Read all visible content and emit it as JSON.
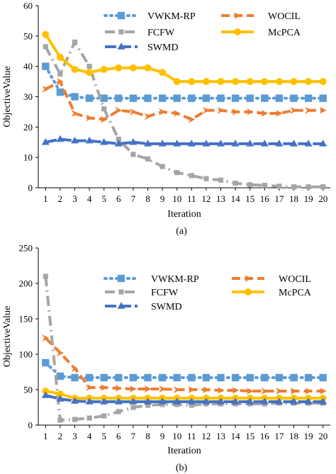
{
  "chart_data": [
    {
      "type": "line",
      "caption": "(a)",
      "xlabel": "Iteration",
      "ylabel": "ObjectiveValue",
      "ylim": [
        0,
        60
      ],
      "yticks": [
        0,
        10,
        20,
        30,
        40,
        50,
        60
      ],
      "x": [
        1,
        2,
        3,
        4,
        5,
        6,
        7,
        8,
        9,
        10,
        11,
        12,
        13,
        14,
        15,
        16,
        17,
        18,
        19,
        20
      ],
      "series": [
        {
          "name": "VWKM-RP",
          "color": "#5b9bd5",
          "values": [
            40,
            31.5,
            30,
            29.5,
            29.5,
            29.5,
            29.5,
            29.5,
            29.5,
            29.5,
            29.5,
            29.5,
            29.5,
            29.5,
            29.5,
            29.5,
            29.5,
            29.5,
            29.5,
            29.5
          ]
        },
        {
          "name": "WOCIL",
          "color": "#ed7d31",
          "values": [
            32.5,
            35,
            24.5,
            23,
            22.5,
            25.5,
            25,
            23.5,
            25,
            24.5,
            22.5,
            25.5,
            25.5,
            25,
            25,
            24.5,
            24.5,
            25.5,
            25.5,
            25.5
          ]
        },
        {
          "name": "FCFW",
          "color": "#a5a5a5",
          "values": [
            46.5,
            37.5,
            48,
            40,
            26,
            16,
            11,
            9.5,
            7,
            5,
            4,
            3,
            2.5,
            1.5,
            1,
            0.8,
            0.5,
            0.3,
            0.3,
            0.3
          ]
        },
        {
          "name": "McPCA",
          "color": "#ffc000",
          "values": [
            50.5,
            43,
            39,
            38,
            39,
            39.5,
            39.5,
            39.5,
            38,
            35,
            35,
            35,
            35,
            35,
            35,
            35,
            35,
            35,
            35,
            35
          ]
        },
        {
          "name": "SWMD",
          "color": "#4472c4",
          "values": [
            15,
            16,
            15.5,
            15.5,
            15,
            14.5,
            15,
            14.5,
            14.5,
            14.5,
            14.5,
            14.5,
            14.5,
            14.5,
            14.5,
            14.5,
            14.5,
            14.5,
            14.5,
            14.5
          ]
        }
      ]
    },
    {
      "type": "line",
      "caption": "(b)",
      "xlabel": "Iteration",
      "ylabel": "ObjectiveValue",
      "ylim": [
        0,
        250
      ],
      "yticks": [
        0,
        50,
        100,
        150,
        200,
        250
      ],
      "x": [
        1,
        2,
        3,
        4,
        5,
        6,
        7,
        8,
        9,
        10,
        11,
        12,
        13,
        14,
        15,
        16,
        17,
        18,
        19,
        20
      ],
      "series": [
        {
          "name": "VWKM-RP",
          "color": "#5b9bd5",
          "values": [
            88,
            69,
            67,
            67,
            67,
            67,
            67,
            67,
            67,
            67,
            67,
            67,
            67,
            67,
            67,
            67,
            67,
            67,
            67,
            67
          ]
        },
        {
          "name": "WOCIL",
          "color": "#ed7d31",
          "values": [
            123,
            102,
            80,
            53,
            53,
            52,
            51,
            51,
            51,
            50,
            50,
            50,
            49,
            49,
            48,
            48,
            48,
            48,
            48,
            48
          ]
        },
        {
          "name": "FCFW",
          "color": "#a5a5a5",
          "values": [
            210,
            7,
            8,
            10,
            13,
            19,
            25,
            28,
            29,
            29,
            28,
            30,
            30,
            30,
            30,
            30,
            31,
            31,
            31,
            31
          ]
        },
        {
          "name": "McPCA",
          "color": "#ffc000",
          "values": [
            48,
            44,
            38,
            38,
            38,
            38,
            38,
            38,
            38,
            38,
            38,
            38,
            38,
            38,
            38,
            38,
            38,
            38,
            38,
            38
          ]
        },
        {
          "name": "SWMD",
          "color": "#4472c4",
          "values": [
            42,
            37,
            34,
            33,
            33,
            33,
            33,
            33,
            33,
            33,
            33,
            33,
            33,
            33,
            33,
            33,
            33,
            33,
            33,
            33
          ]
        }
      ]
    }
  ]
}
